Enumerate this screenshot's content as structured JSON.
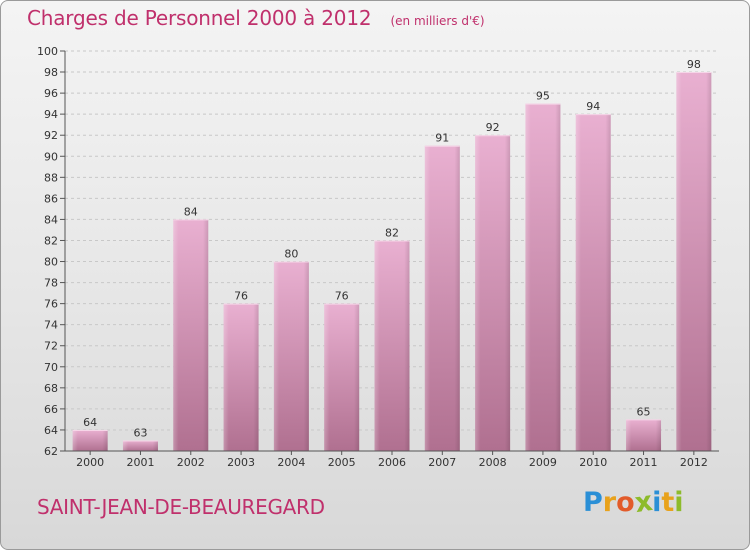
{
  "title": "Charges de Personnel 2000 à 2012",
  "subtitle": "(en milliers d'€)",
  "place": "SAINT-JEAN-DE-BEAUREGARD",
  "logo": {
    "letters": [
      "P",
      "r",
      "o",
      "x",
      "i",
      "t",
      "i"
    ],
    "colors": [
      "#2a8fd6",
      "#e8a21c",
      "#e25b2a",
      "#8dbb2b",
      "#2a8fd6",
      "#e8a21c",
      "#8dbb2b"
    ]
  },
  "colors": {
    "title": "#c0306c",
    "bar_light": "#e7aacd",
    "bar_dark": "#b0708f"
  },
  "chart_data": {
    "type": "bar",
    "title": "Charges de Personnel 2000 à 2012",
    "subtitle": "(en milliers d'€)",
    "categories": [
      "2000",
      "2001",
      "2002",
      "2003",
      "2004",
      "2005",
      "2006",
      "2007",
      "2008",
      "2009",
      "2010",
      "2011",
      "2012"
    ],
    "values": [
      64,
      63,
      84,
      76,
      80,
      76,
      82,
      91,
      92,
      95,
      94,
      65,
      98
    ],
    "value_labels": [
      "64",
      "63",
      "84",
      "76",
      "80",
      "76",
      "82",
      "91",
      "92",
      "95",
      "94",
      "65",
      "98"
    ],
    "ylim": [
      62,
      100
    ],
    "yticks": [
      "62",
      "64",
      "66",
      "68",
      "70",
      "72",
      "74",
      "76",
      "78",
      "80",
      "82",
      "84",
      "86",
      "88",
      "90",
      "92",
      "94",
      "96",
      "98",
      "100"
    ],
    "grid": true,
    "xlabel": "",
    "ylabel": ""
  }
}
